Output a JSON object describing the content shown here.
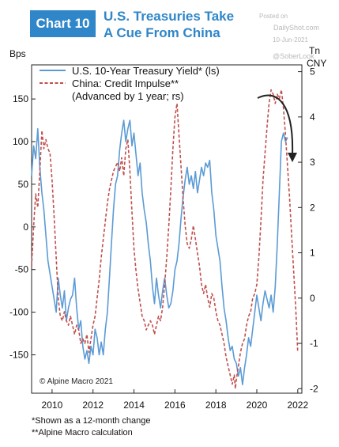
{
  "header": {
    "badge": "Chart 10",
    "title_line1": "U.S. Treasuries Take",
    "title_line2": "A Cue From China"
  },
  "watermark": {
    "posted_on": "Posted on",
    "site": "DailyShot.com",
    "date": "10-Jun-2021",
    "handle": "@SoberLook"
  },
  "footnotes": {
    "line1": "*Shown as a 12-month change",
    "line2": "**Alpine Macro calculation"
  },
  "chart_data": {
    "type": "line",
    "credit": "© Alpine Macro 2021",
    "left_axis_unit": "Bps",
    "right_axis_unit_line1": "Tn",
    "right_axis_unit_line2": "CNY",
    "x_ticks": [
      2010,
      2012,
      2014,
      2016,
      2018,
      2020,
      2022
    ],
    "xlim": [
      2009.0,
      2022.2
    ],
    "y_left_ticks": [
      150,
      100,
      50,
      0,
      -50,
      -100,
      -150
    ],
    "y_left_tick_labels": [
      "150",
      "100",
      "50",
      "0",
      "-50",
      "-100",
      "-150"
    ],
    "ylim_left": [
      -195,
      190
    ],
    "y_right_ticks": [
      5,
      4,
      3,
      2,
      1,
      0,
      -1,
      -2
    ],
    "ylim_right": [
      -2.1,
      5.15
    ],
    "legend_position": "top-left",
    "arrow_annotation": "curved downward arrow near 2021-2022",
    "series": [
      {
        "name": "U.S. 10-Year Treasury Yield* (ls)",
        "axis": "left",
        "color": "#5b9bd5",
        "style": "solid",
        "points": [
          [
            2009.0,
            60
          ],
          [
            2009.1,
            95
          ],
          [
            2009.2,
            80
          ],
          [
            2009.3,
            115
          ],
          [
            2009.4,
            70
          ],
          [
            2009.5,
            40
          ],
          [
            2009.6,
            20
          ],
          [
            2009.7,
            -10
          ],
          [
            2009.8,
            -40
          ],
          [
            2009.9,
            -55
          ],
          [
            2010.0,
            -70
          ],
          [
            2010.1,
            -85
          ],
          [
            2010.2,
            -100
          ],
          [
            2010.3,
            -60
          ],
          [
            2010.4,
            -80
          ],
          [
            2010.5,
            -95
          ],
          [
            2010.6,
            -75
          ],
          [
            2010.7,
            -110
          ],
          [
            2010.8,
            -95
          ],
          [
            2010.9,
            -85
          ],
          [
            2011.0,
            -80
          ],
          [
            2011.1,
            -60
          ],
          [
            2011.2,
            -95
          ],
          [
            2011.3,
            -120
          ],
          [
            2011.4,
            -110
          ],
          [
            2011.5,
            -140
          ],
          [
            2011.6,
            -155
          ],
          [
            2011.7,
            -145
          ],
          [
            2011.8,
            -160
          ],
          [
            2011.9,
            -140
          ],
          [
            2012.0,
            -150
          ],
          [
            2012.1,
            -120
          ],
          [
            2012.2,
            -130
          ],
          [
            2012.3,
            -150
          ],
          [
            2012.4,
            -135
          ],
          [
            2012.5,
            -150
          ],
          [
            2012.6,
            -120
          ],
          [
            2012.7,
            -100
          ],
          [
            2012.8,
            -60
          ],
          [
            2012.9,
            -20
          ],
          [
            2013.0,
            20
          ],
          [
            2013.1,
            50
          ],
          [
            2013.2,
            60
          ],
          [
            2013.3,
            90
          ],
          [
            2013.4,
            110
          ],
          [
            2013.5,
            125
          ],
          [
            2013.6,
            100
          ],
          [
            2013.7,
            115
          ],
          [
            2013.8,
            125
          ],
          [
            2013.9,
            95
          ],
          [
            2014.0,
            110
          ],
          [
            2014.1,
            85
          ],
          [
            2014.2,
            60
          ],
          [
            2014.3,
            75
          ],
          [
            2014.4,
            40
          ],
          [
            2014.5,
            20
          ],
          [
            2014.6,
            5
          ],
          [
            2014.7,
            -20
          ],
          [
            2014.8,
            -40
          ],
          [
            2014.9,
            -70
          ],
          [
            2015.0,
            -90
          ],
          [
            2015.1,
            -60
          ],
          [
            2015.2,
            -80
          ],
          [
            2015.3,
            -95
          ],
          [
            2015.4,
            -75
          ],
          [
            2015.5,
            -60
          ],
          [
            2015.6,
            -80
          ],
          [
            2015.7,
            -95
          ],
          [
            2015.8,
            -90
          ],
          [
            2015.9,
            -75
          ],
          [
            2016.0,
            -50
          ],
          [
            2016.1,
            -40
          ],
          [
            2016.2,
            -20
          ],
          [
            2016.3,
            10
          ],
          [
            2016.4,
            35
          ],
          [
            2016.5,
            55
          ],
          [
            2016.6,
            70
          ],
          [
            2016.7,
            50
          ],
          [
            2016.8,
            60
          ],
          [
            2016.9,
            45
          ],
          [
            2017.0,
            65
          ],
          [
            2017.1,
            40
          ],
          [
            2017.2,
            55
          ],
          [
            2017.3,
            70
          ],
          [
            2017.4,
            60
          ],
          [
            2017.5,
            75
          ],
          [
            2017.6,
            70
          ],
          [
            2017.7,
            78
          ],
          [
            2017.8,
            40
          ],
          [
            2017.9,
            20
          ],
          [
            2018.0,
            -10
          ],
          [
            2018.1,
            -25
          ],
          [
            2018.2,
            -40
          ],
          [
            2018.3,
            -70
          ],
          [
            2018.4,
            -95
          ],
          [
            2018.5,
            -110
          ],
          [
            2018.6,
            -130
          ],
          [
            2018.7,
            -145
          ],
          [
            2018.8,
            -140
          ],
          [
            2018.9,
            -155
          ],
          [
            2019.0,
            -160
          ],
          [
            2019.1,
            -175
          ],
          [
            2019.2,
            -165
          ],
          [
            2019.3,
            -185
          ],
          [
            2019.4,
            -165
          ],
          [
            2019.5,
            -150
          ],
          [
            2019.6,
            -130
          ],
          [
            2019.7,
            -140
          ],
          [
            2019.8,
            -120
          ],
          [
            2019.9,
            -100
          ],
          [
            2020.0,
            -80
          ],
          [
            2020.1,
            -95
          ],
          [
            2020.2,
            -110
          ],
          [
            2020.3,
            -90
          ],
          [
            2020.4,
            -75
          ],
          [
            2020.5,
            -85
          ],
          [
            2020.6,
            -95
          ],
          [
            2020.7,
            -80
          ],
          [
            2020.8,
            -100
          ],
          [
            2020.9,
            -70
          ],
          [
            2021.0,
            -20
          ],
          [
            2021.1,
            40
          ],
          [
            2021.2,
            100
          ],
          [
            2021.3,
            110
          ],
          [
            2021.4,
            100
          ],
          [
            2021.5,
            105
          ]
        ]
      },
      {
        "name": "China: Credit Impulse**",
        "name_note": "(Advanced by 1 year; rs)",
        "axis": "right",
        "color": "#c0504d",
        "style": "dashed",
        "points": [
          [
            2009.0,
            0.7
          ],
          [
            2009.1,
            1.6
          ],
          [
            2009.2,
            2.3
          ],
          [
            2009.3,
            2.0
          ],
          [
            2009.4,
            2.8
          ],
          [
            2009.5,
            3.7
          ],
          [
            2009.6,
            3.3
          ],
          [
            2009.7,
            3.5
          ],
          [
            2009.8,
            3.3
          ],
          [
            2009.9,
            3.2
          ],
          [
            2010.0,
            2.6
          ],
          [
            2010.1,
            1.8
          ],
          [
            2010.2,
            0.9
          ],
          [
            2010.3,
            0.0
          ],
          [
            2010.4,
            -0.4
          ],
          [
            2010.5,
            -0.5
          ],
          [
            2010.6,
            -0.3
          ],
          [
            2010.7,
            -0.5
          ],
          [
            2010.8,
            -0.6
          ],
          [
            2010.9,
            -0.4
          ],
          [
            2011.0,
            -0.6
          ],
          [
            2011.1,
            -0.8
          ],
          [
            2011.2,
            -0.6
          ],
          [
            2011.3,
            -0.7
          ],
          [
            2011.4,
            -1.0
          ],
          [
            2011.5,
            -0.9
          ],
          [
            2011.6,
            -1.0
          ],
          [
            2011.7,
            -0.8
          ],
          [
            2011.8,
            -1.2
          ],
          [
            2011.9,
            -0.9
          ],
          [
            2012.0,
            -0.6
          ],
          [
            2012.1,
            -0.4
          ],
          [
            2012.2,
            0.0
          ],
          [
            2012.3,
            0.4
          ],
          [
            2012.4,
            0.9
          ],
          [
            2012.5,
            1.3
          ],
          [
            2012.6,
            1.7
          ],
          [
            2012.7,
            2.1
          ],
          [
            2012.8,
            2.4
          ],
          [
            2012.9,
            2.6
          ],
          [
            2013.0,
            2.8
          ],
          [
            2013.1,
            2.9
          ],
          [
            2013.2,
            3.0
          ],
          [
            2013.3,
            2.8
          ],
          [
            2013.4,
            3.1
          ],
          [
            2013.5,
            2.7
          ],
          [
            2013.6,
            3.3
          ],
          [
            2013.7,
            3.5
          ],
          [
            2013.8,
            2.8
          ],
          [
            2013.9,
            1.9
          ],
          [
            2014.0,
            1.1
          ],
          [
            2014.1,
            0.6
          ],
          [
            2014.2,
            0.2
          ],
          [
            2014.3,
            -0.1
          ],
          [
            2014.4,
            -0.4
          ],
          [
            2014.5,
            -0.5
          ],
          [
            2014.6,
            -0.7
          ],
          [
            2014.7,
            -0.6
          ],
          [
            2014.8,
            -0.5
          ],
          [
            2014.9,
            -0.6
          ],
          [
            2015.0,
            -0.8
          ],
          [
            2015.1,
            -0.6
          ],
          [
            2015.2,
            -0.4
          ],
          [
            2015.3,
            -0.5
          ],
          [
            2015.4,
            -0.2
          ],
          [
            2015.5,
            0.3
          ],
          [
            2015.6,
            0.9
          ],
          [
            2015.7,
            1.6
          ],
          [
            2015.8,
            2.4
          ],
          [
            2015.9,
            3.3
          ],
          [
            2016.0,
            4.0
          ],
          [
            2016.1,
            4.3
          ],
          [
            2016.2,
            3.6
          ],
          [
            2016.3,
            2.9
          ],
          [
            2016.4,
            2.2
          ],
          [
            2016.5,
            1.6
          ],
          [
            2016.6,
            1.2
          ],
          [
            2016.7,
            1.1
          ],
          [
            2016.8,
            1.3
          ],
          [
            2016.9,
            1.6
          ],
          [
            2017.0,
            1.3
          ],
          [
            2017.1,
            1.0
          ],
          [
            2017.2,
            0.7
          ],
          [
            2017.3,
            0.3
          ],
          [
            2017.4,
            0.1
          ],
          [
            2017.5,
            0.3
          ],
          [
            2017.6,
            0.0
          ],
          [
            2017.7,
            -0.2
          ],
          [
            2017.8,
            0.1
          ],
          [
            2017.9,
            0.0
          ],
          [
            2018.0,
            -0.3
          ],
          [
            2018.1,
            -0.5
          ],
          [
            2018.2,
            -0.6
          ],
          [
            2018.3,
            -0.8
          ],
          [
            2018.4,
            -1.0
          ],
          [
            2018.5,
            -1.3
          ],
          [
            2018.6,
            -1.5
          ],
          [
            2018.7,
            -1.7
          ],
          [
            2018.8,
            -1.9
          ],
          [
            2018.9,
            -1.7
          ],
          [
            2018.95,
            -2.0
          ],
          [
            2019.0,
            -1.8
          ],
          [
            2019.1,
            -1.5
          ],
          [
            2019.2,
            -1.2
          ],
          [
            2019.3,
            -1.0
          ],
          [
            2019.4,
            -0.9
          ],
          [
            2019.5,
            -0.6
          ],
          [
            2019.6,
            -0.4
          ],
          [
            2019.7,
            -0.3
          ],
          [
            2019.8,
            0.0
          ],
          [
            2019.9,
            0.1
          ],
          [
            2020.0,
            0.3
          ],
          [
            2020.1,
            0.9
          ],
          [
            2020.2,
            1.7
          ],
          [
            2020.3,
            2.6
          ],
          [
            2020.4,
            3.2
          ],
          [
            2020.5,
            3.8
          ],
          [
            2020.6,
            4.3
          ],
          [
            2020.7,
            4.6
          ],
          [
            2020.8,
            4.5
          ],
          [
            2020.9,
            4.3
          ],
          [
            2021.0,
            4.5
          ],
          [
            2021.1,
            4.4
          ],
          [
            2021.2,
            4.6
          ],
          [
            2021.3,
            4.2
          ],
          [
            2021.4,
            3.6
          ],
          [
            2021.5,
            2.9
          ],
          [
            2021.6,
            2.2
          ],
          [
            2021.7,
            1.4
          ],
          [
            2021.8,
            0.6
          ],
          [
            2021.9,
            -0.2
          ],
          [
            2022.0,
            -1.2
          ]
        ]
      }
    ]
  }
}
